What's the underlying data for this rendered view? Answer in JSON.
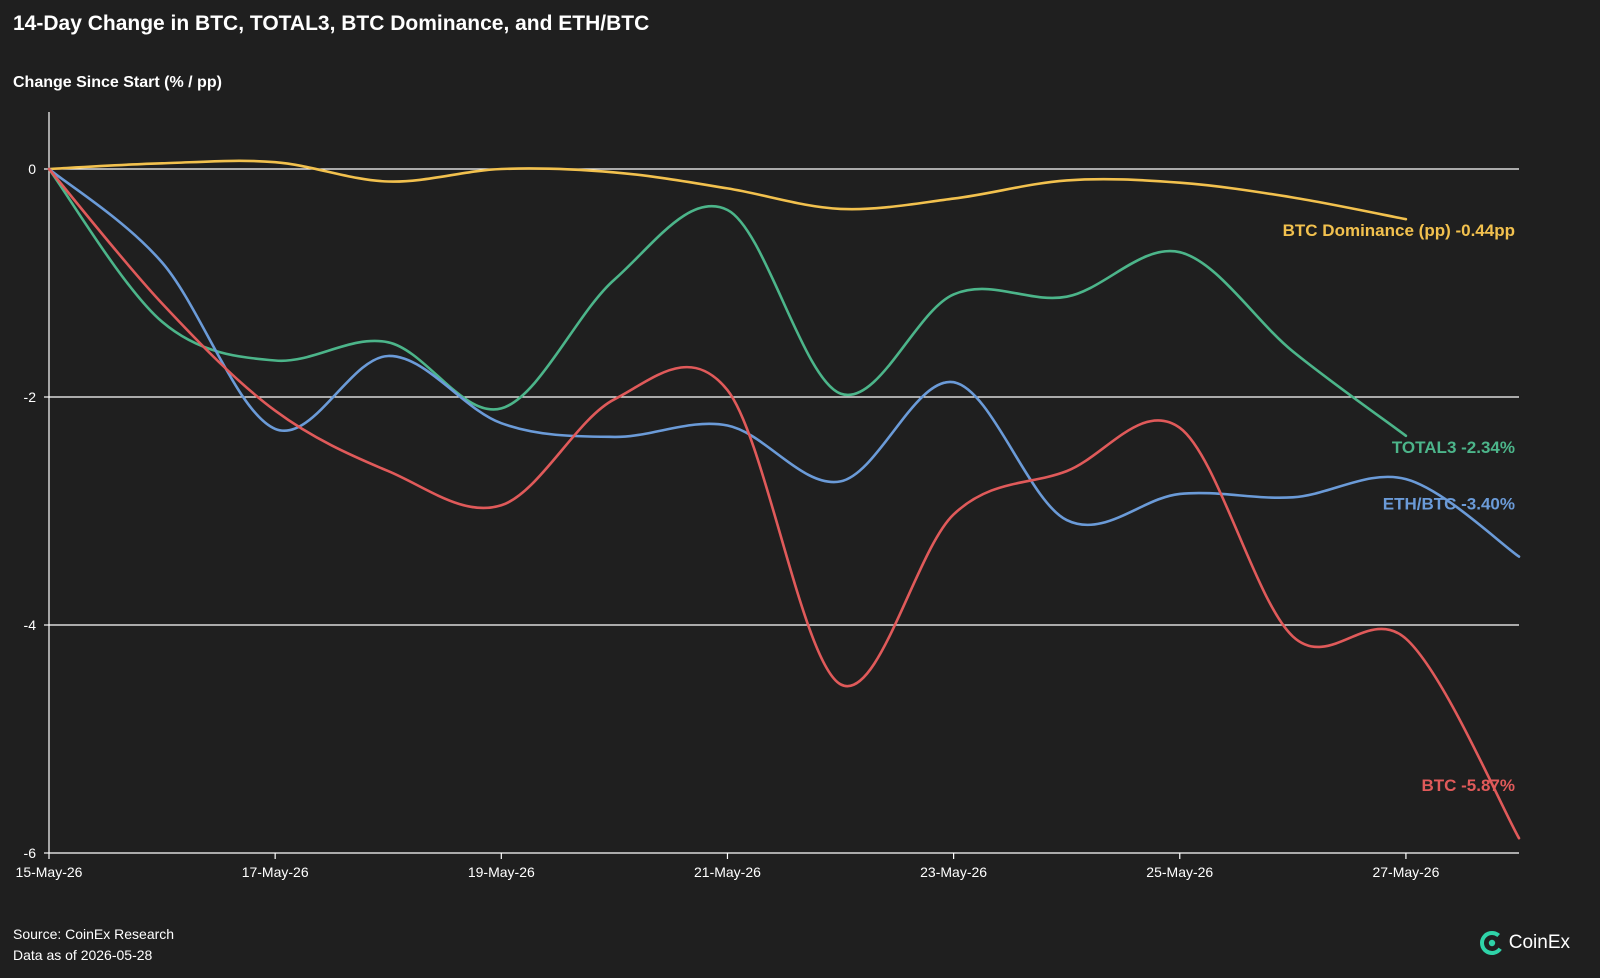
{
  "chart_data": {
    "type": "line",
    "title": "14-Day Change in BTC, TOTAL3, BTC Dominance, and ETH/BTC",
    "ylabel": "Change Since Start (% / pp)",
    "xlabel": "",
    "ylim": [
      -6,
      0.5
    ],
    "yticks": [
      0,
      -2,
      -4,
      -6
    ],
    "x": [
      "15-May-26",
      "16-May-26",
      "17-May-26",
      "18-May-26",
      "19-May-26",
      "20-May-26",
      "21-May-26",
      "22-May-26",
      "23-May-26",
      "24-May-26",
      "25-May-26",
      "26-May-26",
      "27-May-26",
      "28-May-26"
    ],
    "xticks": [
      "15-May-26",
      "17-May-26",
      "19-May-26",
      "21-May-26",
      "23-May-26",
      "25-May-26",
      "27-May-26"
    ],
    "grid": "horizontal",
    "series": [
      {
        "name": "BTC Dominance (pp)",
        "label": "BTC Dominance (pp) -0.44pp",
        "color": "#f2c14e",
        "values": [
          0,
          0.05,
          0.06,
          -0.11,
          0,
          -0.03,
          -0.17,
          -0.35,
          -0.26,
          -0.1,
          -0.12,
          -0.25,
          -0.44,
          null
        ]
      },
      {
        "name": "TOTAL3",
        "label": "TOTAL3 -2.34%",
        "color": "#4cb58a",
        "values": [
          0,
          -1.34,
          -1.68,
          -1.52,
          -2.1,
          -0.97,
          -0.36,
          -1.97,
          -1.1,
          -1.12,
          -0.73,
          -1.6,
          -2.34,
          null
        ]
      },
      {
        "name": "ETH/BTC",
        "label": "ETH/BTC -3.40%",
        "color": "#6b9bd8",
        "values": [
          0,
          -0.82,
          -2.28,
          -1.64,
          -2.23,
          -2.35,
          -2.25,
          -2.74,
          -1.87,
          -3.08,
          -2.85,
          -2.88,
          -2.72,
          -3.4
        ]
      },
      {
        "name": "BTC",
        "label": "BTC -5.87%",
        "color": "#e05a5a",
        "values": [
          0,
          -1.18,
          -2.12,
          -2.65,
          -2.95,
          -2.02,
          -1.94,
          -4.52,
          -3.03,
          -2.65,
          -2.27,
          -4.1,
          -4.12,
          -5.87
        ]
      }
    ]
  },
  "footer": {
    "source": "Source: CoinEx Research",
    "data_as_of": "Data as of 2026-05-28"
  },
  "logo": {
    "text": "CoinEx",
    "icon": "coinex-logo-icon"
  },
  "colors": {
    "background": "#1f1f1f",
    "grid": "#ffffff",
    "text": "#ffffff"
  }
}
